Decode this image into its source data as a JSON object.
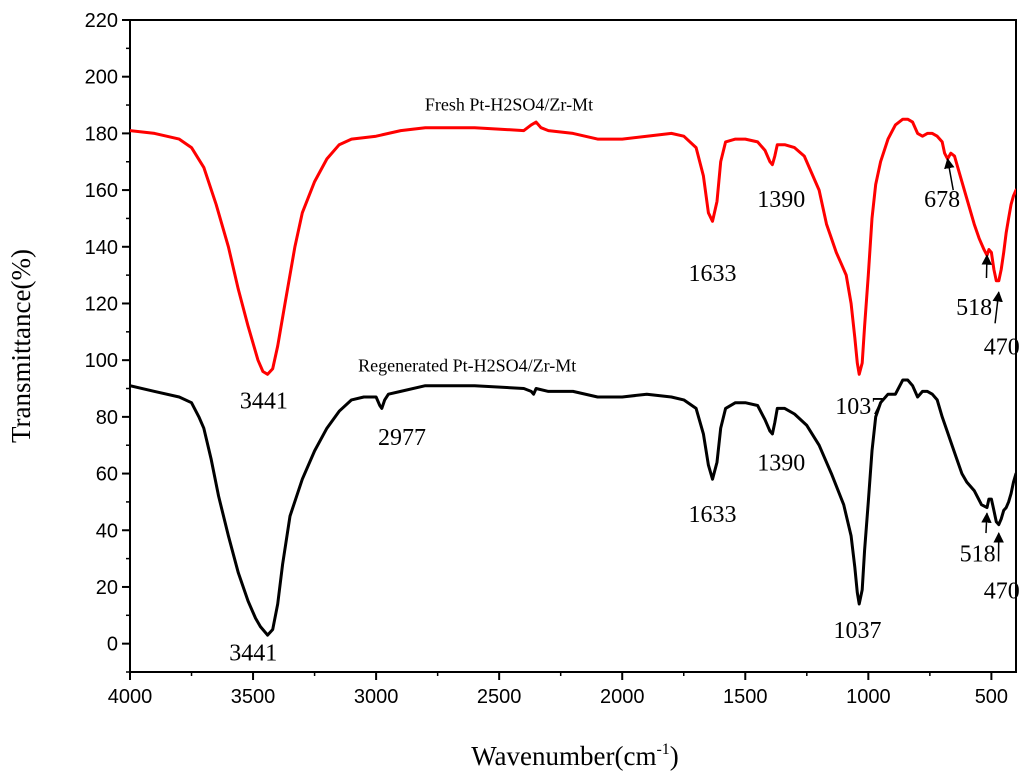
{
  "chart_data": {
    "type": "line",
    "title": "",
    "xlabel_main": "Wavenumber(cm",
    "xlabel_sup": "-1",
    "xlabel_close": ")",
    "ylabel": "Transmittance(%)",
    "xlim": [
      4000,
      400
    ],
    "ylim": [
      -10,
      220
    ],
    "x_reversed": true,
    "grid": false,
    "legend": "none",
    "x_ticks": [
      4000,
      3500,
      3000,
      2500,
      2000,
      1500,
      1000,
      500
    ],
    "y_ticks": [
      0,
      20,
      40,
      60,
      80,
      100,
      120,
      140,
      160,
      180,
      200,
      220
    ],
    "series": [
      {
        "name": "Fresh Pt-H2SO4/Zr-Mt",
        "color": "#ff0000",
        "points": [
          [
            4000,
            181
          ],
          [
            3900,
            180
          ],
          [
            3800,
            178
          ],
          [
            3750,
            175
          ],
          [
            3700,
            168
          ],
          [
            3650,
            155
          ],
          [
            3600,
            140
          ],
          [
            3560,
            125
          ],
          [
            3520,
            112
          ],
          [
            3480,
            100
          ],
          [
            3460,
            96
          ],
          [
            3441,
            95
          ],
          [
            3420,
            97
          ],
          [
            3400,
            105
          ],
          [
            3370,
            120
          ],
          [
            3330,
            140
          ],
          [
            3300,
            152
          ],
          [
            3250,
            163
          ],
          [
            3200,
            171
          ],
          [
            3150,
            176
          ],
          [
            3100,
            178
          ],
          [
            3000,
            179
          ],
          [
            2900,
            181
          ],
          [
            2800,
            182
          ],
          [
            2600,
            182
          ],
          [
            2400,
            181
          ],
          [
            2370,
            183
          ],
          [
            2350,
            184
          ],
          [
            2330,
            182
          ],
          [
            2300,
            181
          ],
          [
            2200,
            180
          ],
          [
            2100,
            178
          ],
          [
            2000,
            178
          ],
          [
            1900,
            179
          ],
          [
            1800,
            180
          ],
          [
            1750,
            179
          ],
          [
            1700,
            175
          ],
          [
            1670,
            165
          ],
          [
            1650,
            152
          ],
          [
            1633,
            149
          ],
          [
            1615,
            156
          ],
          [
            1600,
            170
          ],
          [
            1580,
            177
          ],
          [
            1540,
            178
          ],
          [
            1500,
            178
          ],
          [
            1450,
            177
          ],
          [
            1420,
            174
          ],
          [
            1400,
            170
          ],
          [
            1390,
            169
          ],
          [
            1380,
            172
          ],
          [
            1370,
            176
          ],
          [
            1340,
            176
          ],
          [
            1300,
            175
          ],
          [
            1260,
            172
          ],
          [
            1230,
            166
          ],
          [
            1200,
            160
          ],
          [
            1170,
            148
          ],
          [
            1150,
            143
          ],
          [
            1130,
            138
          ],
          [
            1110,
            134
          ],
          [
            1090,
            130
          ],
          [
            1070,
            120
          ],
          [
            1055,
            108
          ],
          [
            1045,
            99
          ],
          [
            1037,
            95
          ],
          [
            1025,
            99
          ],
          [
            1015,
            112
          ],
          [
            1000,
            130
          ],
          [
            985,
            150
          ],
          [
            970,
            162
          ],
          [
            950,
            170
          ],
          [
            920,
            178
          ],
          [
            890,
            183
          ],
          [
            860,
            185
          ],
          [
            840,
            185
          ],
          [
            820,
            184
          ],
          [
            800,
            180
          ],
          [
            780,
            179
          ],
          [
            760,
            180
          ],
          [
            740,
            180
          ],
          [
            720,
            179
          ],
          [
            700,
            177
          ],
          [
            690,
            173
          ],
          [
            678,
            171
          ],
          [
            665,
            173
          ],
          [
            650,
            172
          ],
          [
            630,
            166
          ],
          [
            600,
            157
          ],
          [
            570,
            148
          ],
          [
            550,
            143
          ],
          [
            530,
            139
          ],
          [
            518,
            137
          ],
          [
            510,
            139
          ],
          [
            500,
            138
          ],
          [
            490,
            132
          ],
          [
            480,
            128
          ],
          [
            470,
            128
          ],
          [
            460,
            132
          ],
          [
            450,
            138
          ],
          [
            440,
            145
          ],
          [
            430,
            150
          ],
          [
            420,
            155
          ],
          [
            410,
            158
          ],
          [
            400,
            160
          ]
        ]
      },
      {
        "name": "Regenerated Pt-H2SO4/Zr-Mt",
        "color": "#000000",
        "points": [
          [
            4000,
            91
          ],
          [
            3900,
            89
          ],
          [
            3800,
            87
          ],
          [
            3750,
            85
          ],
          [
            3720,
            80
          ],
          [
            3700,
            76
          ],
          [
            3670,
            65
          ],
          [
            3640,
            52
          ],
          [
            3600,
            38
          ],
          [
            3560,
            25
          ],
          [
            3520,
            15
          ],
          [
            3490,
            9
          ],
          [
            3470,
            6
          ],
          [
            3441,
            3
          ],
          [
            3420,
            5
          ],
          [
            3400,
            14
          ],
          [
            3380,
            28
          ],
          [
            3350,
            45
          ],
          [
            3300,
            58
          ],
          [
            3250,
            68
          ],
          [
            3200,
            76
          ],
          [
            3150,
            82
          ],
          [
            3100,
            86
          ],
          [
            3050,
            87
          ],
          [
            3000,
            87
          ],
          [
            2985,
            84
          ],
          [
            2977,
            83
          ],
          [
            2965,
            86
          ],
          [
            2950,
            88
          ],
          [
            2900,
            89
          ],
          [
            2800,
            91
          ],
          [
            2600,
            91
          ],
          [
            2400,
            90
          ],
          [
            2370,
            89
          ],
          [
            2360,
            88
          ],
          [
            2350,
            90
          ],
          [
            2300,
            89
          ],
          [
            2200,
            89
          ],
          [
            2100,
            87
          ],
          [
            2000,
            87
          ],
          [
            1900,
            88
          ],
          [
            1800,
            87
          ],
          [
            1750,
            86
          ],
          [
            1700,
            83
          ],
          [
            1670,
            74
          ],
          [
            1650,
            63
          ],
          [
            1633,
            58
          ],
          [
            1615,
            64
          ],
          [
            1600,
            76
          ],
          [
            1580,
            83
          ],
          [
            1540,
            85
          ],
          [
            1500,
            85
          ],
          [
            1450,
            84
          ],
          [
            1420,
            79
          ],
          [
            1400,
            75
          ],
          [
            1390,
            74
          ],
          [
            1380,
            78
          ],
          [
            1370,
            83
          ],
          [
            1340,
            83
          ],
          [
            1300,
            81
          ],
          [
            1250,
            77
          ],
          [
            1200,
            70
          ],
          [
            1150,
            60
          ],
          [
            1100,
            49
          ],
          [
            1070,
            38
          ],
          [
            1055,
            27
          ],
          [
            1045,
            18
          ],
          [
            1037,
            14
          ],
          [
            1025,
            19
          ],
          [
            1015,
            33
          ],
          [
            1000,
            50
          ],
          [
            985,
            68
          ],
          [
            970,
            80
          ],
          [
            950,
            85
          ],
          [
            920,
            88
          ],
          [
            890,
            88
          ],
          [
            860,
            93
          ],
          [
            840,
            93
          ],
          [
            820,
            91
          ],
          [
            800,
            87
          ],
          [
            780,
            89
          ],
          [
            760,
            89
          ],
          [
            740,
            88
          ],
          [
            720,
            86
          ],
          [
            700,
            80
          ],
          [
            680,
            75
          ],
          [
            660,
            70
          ],
          [
            640,
            65
          ],
          [
            620,
            60
          ],
          [
            600,
            57
          ],
          [
            570,
            54
          ],
          [
            540,
            49
          ],
          [
            518,
            48
          ],
          [
            510,
            51
          ],
          [
            500,
            51
          ],
          [
            490,
            47
          ],
          [
            480,
            43
          ],
          [
            470,
            42
          ],
          [
            460,
            44
          ],
          [
            450,
            47
          ],
          [
            440,
            48
          ],
          [
            430,
            50
          ],
          [
            420,
            53
          ],
          [
            410,
            57
          ],
          [
            400,
            60
          ]
        ]
      }
    ],
    "series_labels": [
      {
        "text": "Fresh Pt-H2SO4/Zr-Mt",
        "x": 2460,
        "y": 188
      },
      {
        "text": "Regenerated Pt-H2SO4/Zr-Mt",
        "x": 2630,
        "y": 96
      }
    ],
    "peak_labels": [
      {
        "text": "3441",
        "x": 3456,
        "y": 83
      },
      {
        "text": "1633",
        "x": 1633,
        "y": 128
      },
      {
        "text": "1390",
        "x": 1354,
        "y": 154
      },
      {
        "text": "1037",
        "x": 1037,
        "y": 81
      },
      {
        "text": "678",
        "x": 700,
        "y": 154
      },
      {
        "text": "518",
        "x": 570,
        "y": 116
      },
      {
        "text": "470",
        "x": 458,
        "y": 102
      },
      {
        "text": "3441",
        "x": 3499,
        "y": -6
      },
      {
        "text": "2977",
        "x": 2895,
        "y": 70
      },
      {
        "text": "1390",
        "x": 1354,
        "y": 61
      },
      {
        "text": "1633",
        "x": 1633,
        "y": 43
      },
      {
        "text": "1037",
        "x": 1044,
        "y": 2
      },
      {
        "text": "518",
        "x": 556,
        "y": 29
      },
      {
        "text": "470",
        "x": 458,
        "y": 16
      }
    ],
    "arrows": [
      {
        "from": [
          655,
          160
        ],
        "to": [
          678,
          171
        ]
      },
      {
        "from": [
          520,
          129
        ],
        "to": [
          518,
          137
        ]
      },
      {
        "from": [
          485,
          113
        ],
        "to": [
          470,
          124
        ]
      },
      {
        "from": [
          522,
          39
        ],
        "to": [
          518,
          46
        ]
      },
      {
        "from": [
          471,
          29
        ],
        "to": [
          470,
          39
        ]
      }
    ]
  }
}
